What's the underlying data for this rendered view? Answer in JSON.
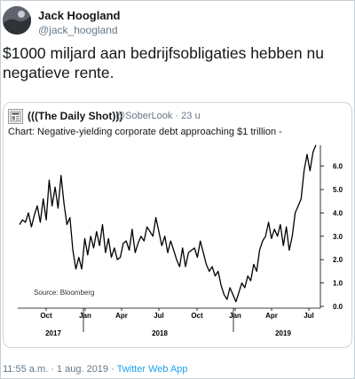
{
  "tweet": {
    "display_name": "Jack Hoogland",
    "handle": "@jack_hoogland",
    "text": "$1000 miljard aan bedrijfsobligaties hebben nu negatieve rente.",
    "timestamp": "11:55 a.m. · 1 aug. 2019 ·",
    "source": "Twitter Web App"
  },
  "quoted_tweet": {
    "display_name": "(((The Daily Shot)))",
    "handle_time": "@SoberLook · 23 u",
    "text": "Chart: Negative-yielding corporate debt approaching $1 trillion -"
  },
  "chart_data": {
    "type": "line",
    "title": "",
    "xlabel": "",
    "ylabel": "",
    "annotation": "Source: Bloomberg",
    "ylim": [
      0,
      7
    ],
    "yticks": [
      "0.0",
      "1.0",
      "2.0",
      "3.0",
      "4.0",
      "5.0",
      "6.0"
    ],
    "month_ticks": [
      "Oct",
      "Jan",
      "Apr",
      "Jul",
      "Oct",
      "Jan",
      "Apr",
      "Jul"
    ],
    "year_labels": [
      "2017",
      "2018",
      "2019"
    ],
    "grid": false,
    "series": [
      {
        "values": [
          3.5,
          3.7,
          3.6,
          4.0,
          3.4,
          3.9,
          4.3,
          3.6,
          4.6,
          3.7,
          5.4,
          4.3,
          5.1,
          4.2,
          5.6,
          4.4,
          3.5,
          3.8,
          2.4,
          1.6,
          2.1,
          1.6,
          2.9,
          2.2,
          3.0,
          2.5,
          3.2,
          2.6,
          3.5,
          2.3,
          2.9,
          2.1,
          2.5,
          2.0,
          2.1,
          2.7,
          2.8,
          2.4,
          3.3,
          2.3,
          2.7,
          3.0,
          2.8,
          3.4,
          3.2,
          3.0,
          3.8,
          3.2,
          2.6,
          3.0,
          2.3,
          2.8,
          2.4,
          2.0,
          1.7,
          2.5,
          1.7,
          2.3,
          2.4,
          2.5,
          2.1,
          2.8,
          2.3,
          1.8,
          1.5,
          1.7,
          1.3,
          1.5,
          0.9,
          0.5,
          0.3,
          0.8,
          0.5,
          0.2,
          0.6,
          1.0,
          0.8,
          1.3,
          1.1,
          1.8,
          1.5,
          2.4,
          2.8,
          3.0,
          3.6,
          2.9,
          3.3,
          3.0,
          3.5,
          2.6,
          3.4,
          2.4,
          3.0,
          4.0,
          4.3,
          4.6,
          5.8,
          6.5,
          5.8,
          6.6,
          6.9
        ]
      }
    ]
  }
}
